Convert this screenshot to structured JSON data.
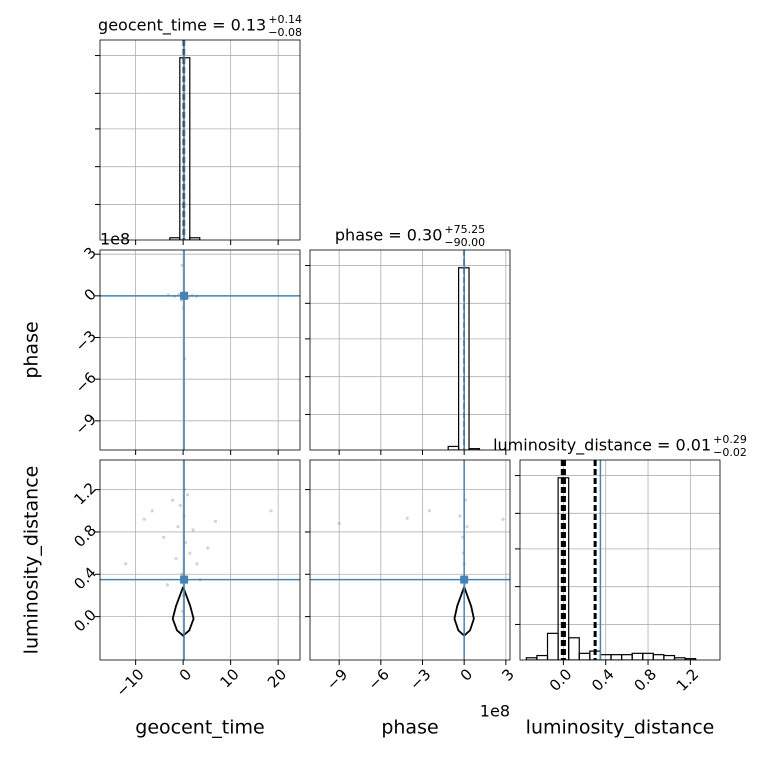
{
  "chart_data": {
    "type": "corner",
    "truth_color": "#4682b4",
    "hist_color": "#000000",
    "point_color": "#808080",
    "grid": true,
    "parameters": [
      {
        "name": "geocent_time",
        "title": "geocent_time = 0.13",
        "title_plus": "+0.14",
        "title_minus": "−0.08",
        "lim": [
          -17.5,
          24.6
        ],
        "ticks": [
          {
            "value": -10,
            "label": "−10"
          },
          0,
          10,
          20
        ],
        "truth": 0.2,
        "quantiles": [
          0.05,
          0.13,
          0.27
        ],
        "bins": [
          -2.8,
          -0.7,
          1.4,
          3.5
        ],
        "counts": [
          0.05,
          4.1,
          0.05
        ],
        "hist_ylim": [
          0,
          4.5
        ],
        "hist_yticks": [
          0.8,
          1.65,
          2.5,
          3.3,
          4.15
        ]
      },
      {
        "name": "phase",
        "title": "phase = 0.30",
        "title_plus": "+75.25",
        "title_minus": "−90.00",
        "offset_label": "1e8",
        "lim": [
          -11.1,
          3.3
        ],
        "ticks": [
          {
            "value": -9,
            "label": "−9"
          },
          {
            "value": -6,
            "label": "−6"
          },
          {
            "value": -3,
            "label": "−3"
          },
          0,
          3
        ],
        "truth": 0,
        "quantiles": [
          -8.97e-07,
          3e-09,
          7.555e-07
        ],
        "bins": [
          -1.15,
          -0.4,
          0.35,
          1.1
        ],
        "counts": [
          0.08,
          4.1,
          0.03
        ],
        "hist_ylim": [
          0,
          4.5
        ],
        "hist_yticks": [
          0.8,
          1.65,
          2.5,
          3.3,
          4.15
        ]
      },
      {
        "name": "luminosity_distance",
        "title": "luminosity_distance = 0.01",
        "title_plus": "+0.29",
        "title_minus": "−0.02",
        "lim": [
          -0.41,
          1.48
        ],
        "ticks": [
          {
            "value": 0,
            "label": "0.0"
          },
          0.4,
          0.8,
          1.2
        ],
        "truth": 0.35,
        "quantiles": [
          -0.01,
          0.01,
          0.3
        ],
        "bins": [
          -0.35,
          -0.25,
          -0.15,
          -0.05,
          0.05,
          0.15,
          0.25,
          0.35,
          0.45,
          0.55,
          0.65,
          0.75,
          0.85,
          0.95,
          1.05,
          1.15,
          1.25
        ],
        "counts": [
          0.05,
          0.1,
          0.6,
          4.1,
          0.5,
          0.15,
          0.2,
          0.12,
          0.12,
          0.12,
          0.15,
          0.15,
          0.12,
          0.1,
          0.05,
          0.03
        ],
        "hist_ylim": [
          0,
          4.5
        ],
        "hist_yticks": [
          0.8,
          1.65,
          2.5,
          3.3,
          4.15
        ]
      }
    ],
    "pairs": [
      {
        "x": 0,
        "y": 1,
        "points_x": [
          -3.1,
          -1.8,
          -0.9,
          -0.4,
          0.2,
          0.6,
          1.1,
          1.9,
          2.8,
          0.1,
          -0.2,
          0.3
        ],
        "points_y": [
          0.05,
          -0.03,
          0.1,
          -0.3,
          -0.05,
          0.2,
          -0.1,
          0.02,
          -0.04,
          -0.9,
          2.2,
          -4.5
        ]
      },
      {
        "x": 0,
        "y": 2,
        "points_x": [
          -8.2,
          -6.5,
          -4.1,
          -3.3,
          -2.2,
          -1.5,
          -1.1,
          -0.6,
          -0.3,
          0.2,
          0.5,
          0.9,
          1.4,
          2.1,
          2.9,
          3.6,
          5.2,
          6.8,
          18.5,
          -12.1,
          0.1,
          -0.1,
          0.3
        ],
        "points_y": [
          0.92,
          1.0,
          0.75,
          0.3,
          1.1,
          0.55,
          0.85,
          1.05,
          0.4,
          0.95,
          0.7,
          1.15,
          0.6,
          0.82,
          0.5,
          0.35,
          0.65,
          0.9,
          1.0,
          0.5,
          0.2,
          0.05,
          1.2
        ],
        "contour_x": [
          0,
          1.5,
          2.2,
          1.3,
          0,
          -1.3,
          -2.2,
          -1.5,
          0
        ],
        "contour_y": [
          0.28,
          0.1,
          -0.02,
          -0.13,
          -0.18,
          -0.13,
          -0.02,
          0.1,
          0.28
        ]
      },
      {
        "x": 1,
        "y": 2,
        "points_x": [
          -9.0,
          -4.1,
          -2.5,
          -0.3,
          -0.1,
          0,
          0.1,
          0.2,
          0.05,
          -0.05,
          2.8
        ],
        "points_y": [
          0.88,
          0.93,
          1.0,
          0.95,
          0.75,
          0.5,
          1.1,
          0.85,
          0.3,
          0.6,
          0.92
        ],
        "contour_x": [
          0,
          0.5,
          0.7,
          0.42,
          0,
          -0.42,
          -0.7,
          -0.5,
          0
        ],
        "contour_y": [
          0.28,
          0.1,
          -0.02,
          -0.13,
          -0.18,
          -0.13,
          -0.02,
          0.1,
          0.28
        ]
      }
    ]
  }
}
